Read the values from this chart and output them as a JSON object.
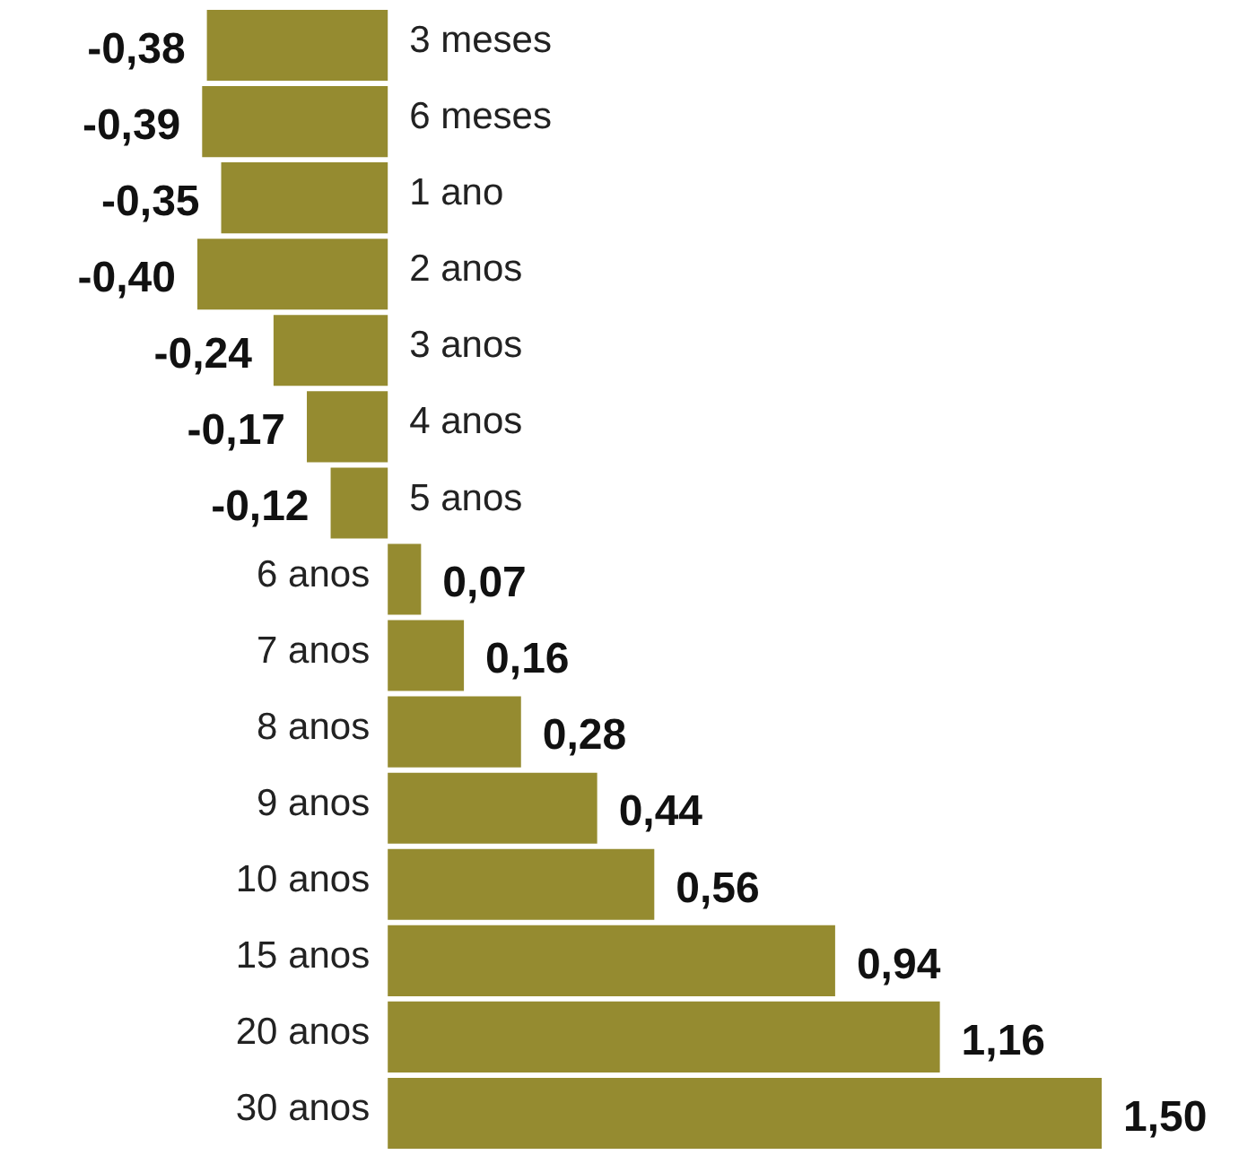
{
  "chart_data": {
    "type": "bar",
    "orientation": "horizontal",
    "categories": [
      "3 meses",
      "6 meses",
      "1 ano",
      "2 anos",
      "3 anos",
      "4 anos",
      "5 anos",
      "6 anos",
      "7 anos",
      "8 anos",
      "9 anos",
      "10 anos",
      "15 anos",
      "20 anos",
      "30 anos"
    ],
    "values": [
      -0.38,
      -0.39,
      -0.35,
      -0.4,
      -0.24,
      -0.17,
      -0.12,
      0.07,
      0.16,
      0.28,
      0.44,
      0.56,
      0.94,
      1.16,
      1.5
    ],
    "value_labels": [
      "-0,38",
      "-0,39",
      "-0,35",
      "-0,40",
      "-0,24",
      "-0,17",
      "-0,12",
      "0,07",
      "0,16",
      "0,28",
      "0,44",
      "0,56",
      "0,94",
      "1,16",
      "1,50"
    ],
    "color": "#958b30"
  }
}
